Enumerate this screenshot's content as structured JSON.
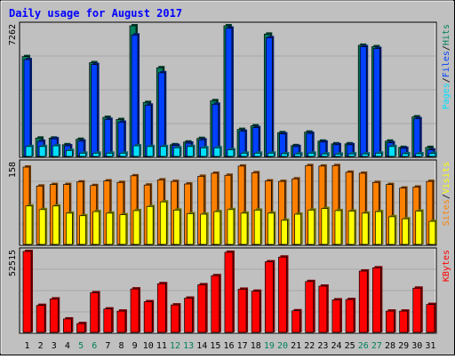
{
  "chart_data": [
    {
      "type": "bar",
      "title": "Daily usage for August 2017",
      "panel": "hits-files-pages",
      "max_label": "7262",
      "side_legend": [
        "Pages",
        "Files",
        "Hits"
      ],
      "categories": [
        "1",
        "2",
        "3",
        "4",
        "5",
        "6",
        "7",
        "8",
        "9",
        "10",
        "11",
        "12",
        "13",
        "14",
        "15",
        "16",
        "17",
        "18",
        "19",
        "20",
        "21",
        "22",
        "23",
        "24",
        "25",
        "26",
        "27",
        "28",
        "29",
        "30",
        "31"
      ],
      "weekend_days": [
        "5",
        "6",
        "12",
        "13",
        "19",
        "20",
        "26",
        "27"
      ],
      "ylim": [
        0,
        7262
      ],
      "series": [
        {
          "name": "Hits",
          "values": [
            5550,
            1020,
            1020,
            650,
            950,
            5210,
            2170,
            2050,
            7262,
            3000,
            4930,
            650,
            800,
            1000,
            3100,
            7262,
            1500,
            1700,
            6800,
            1320,
            600,
            1350,
            850,
            700,
            700,
            6180,
            6100,
            850,
            500,
            2200,
            500
          ]
        },
        {
          "name": "Files",
          "values": [
            5380,
            840,
            980,
            590,
            850,
            5110,
            2060,
            1900,
            6750,
            2850,
            4650,
            610,
            740,
            920,
            2900,
            7130,
            1400,
            1600,
            6600,
            1250,
            550,
            1280,
            800,
            650,
            650,
            6100,
            6000,
            760,
            450,
            2100,
            360
          ]
        },
        {
          "name": "Pages",
          "values": [
            550,
            550,
            590,
            330,
            180,
            180,
            180,
            180,
            590,
            550,
            550,
            480,
            550,
            480,
            480,
            370,
            180,
            180,
            180,
            150,
            140,
            180,
            140,
            130,
            140,
            140,
            180,
            550,
            150,
            150,
            160
          ]
        }
      ]
    },
    {
      "type": "bar",
      "panel": "visits-sites",
      "max_label": "158",
      "side_legend": [
        "Sites",
        "Visits"
      ],
      "categories": [
        "1",
        "2",
        "3",
        "4",
        "5",
        "6",
        "7",
        "8",
        "9",
        "10",
        "11",
        "12",
        "13",
        "14",
        "15",
        "16",
        "17",
        "18",
        "19",
        "20",
        "21",
        "22",
        "23",
        "24",
        "25",
        "26",
        "27",
        "28",
        "29",
        "30",
        "31"
      ],
      "ylim": [
        0,
        158
      ],
      "series": [
        {
          "name": "Visits",
          "values": [
            151,
            114,
            117,
            117,
            122,
            115,
            124,
            121,
            134,
            116,
            126,
            123,
            118,
            133,
            139,
            135,
            153,
            140,
            124,
            123,
            128,
            154,
            153,
            154,
            141,
            139,
            121,
            117,
            110,
            112,
            123
          ]
        },
        {
          "name": "Sites",
          "values": [
            75,
            68,
            75,
            61,
            56,
            64,
            61,
            58,
            66,
            74,
            83,
            67,
            60,
            59,
            64,
            68,
            61,
            67,
            61,
            47,
            59,
            67,
            70,
            66,
            65,
            61,
            64,
            54,
            50,
            65,
            45
          ]
        }
      ]
    },
    {
      "type": "bar",
      "panel": "kbytes",
      "max_label": "52515",
      "side_legend": [
        "KBytes"
      ],
      "categories": [
        "1",
        "2",
        "3",
        "4",
        "5",
        "6",
        "7",
        "8",
        "9",
        "10",
        "11",
        "12",
        "13",
        "14",
        "15",
        "16",
        "17",
        "18",
        "19",
        "20",
        "21",
        "22",
        "23",
        "24",
        "25",
        "26",
        "27",
        "28",
        "29",
        "30",
        "31"
      ],
      "ylim": [
        0,
        52515
      ],
      "series": [
        {
          "name": "KBytes",
          "values": [
            52515,
            17500,
            21700,
            8700,
            5700,
            25700,
            15200,
            13800,
            28200,
            19900,
            31600,
            17800,
            22200,
            30900,
            36800,
            52000,
            28000,
            26700,
            45800,
            48900,
            14000,
            33000,
            30000,
            21100,
            21300,
            39800,
            41900,
            13800,
            13800,
            28700,
            18100
          ]
        }
      ]
    }
  ],
  "colors": {
    "background": "#c0c0c0",
    "title": "#0000ff",
    "hits": "#00805c",
    "files": "#0040ff",
    "pages": "#00e0ff",
    "visits": "#ff8000",
    "sites": "#ffff00",
    "kbytes": "#ff0000",
    "weekday_label": "#000000",
    "weekend_label": "#00805c"
  }
}
